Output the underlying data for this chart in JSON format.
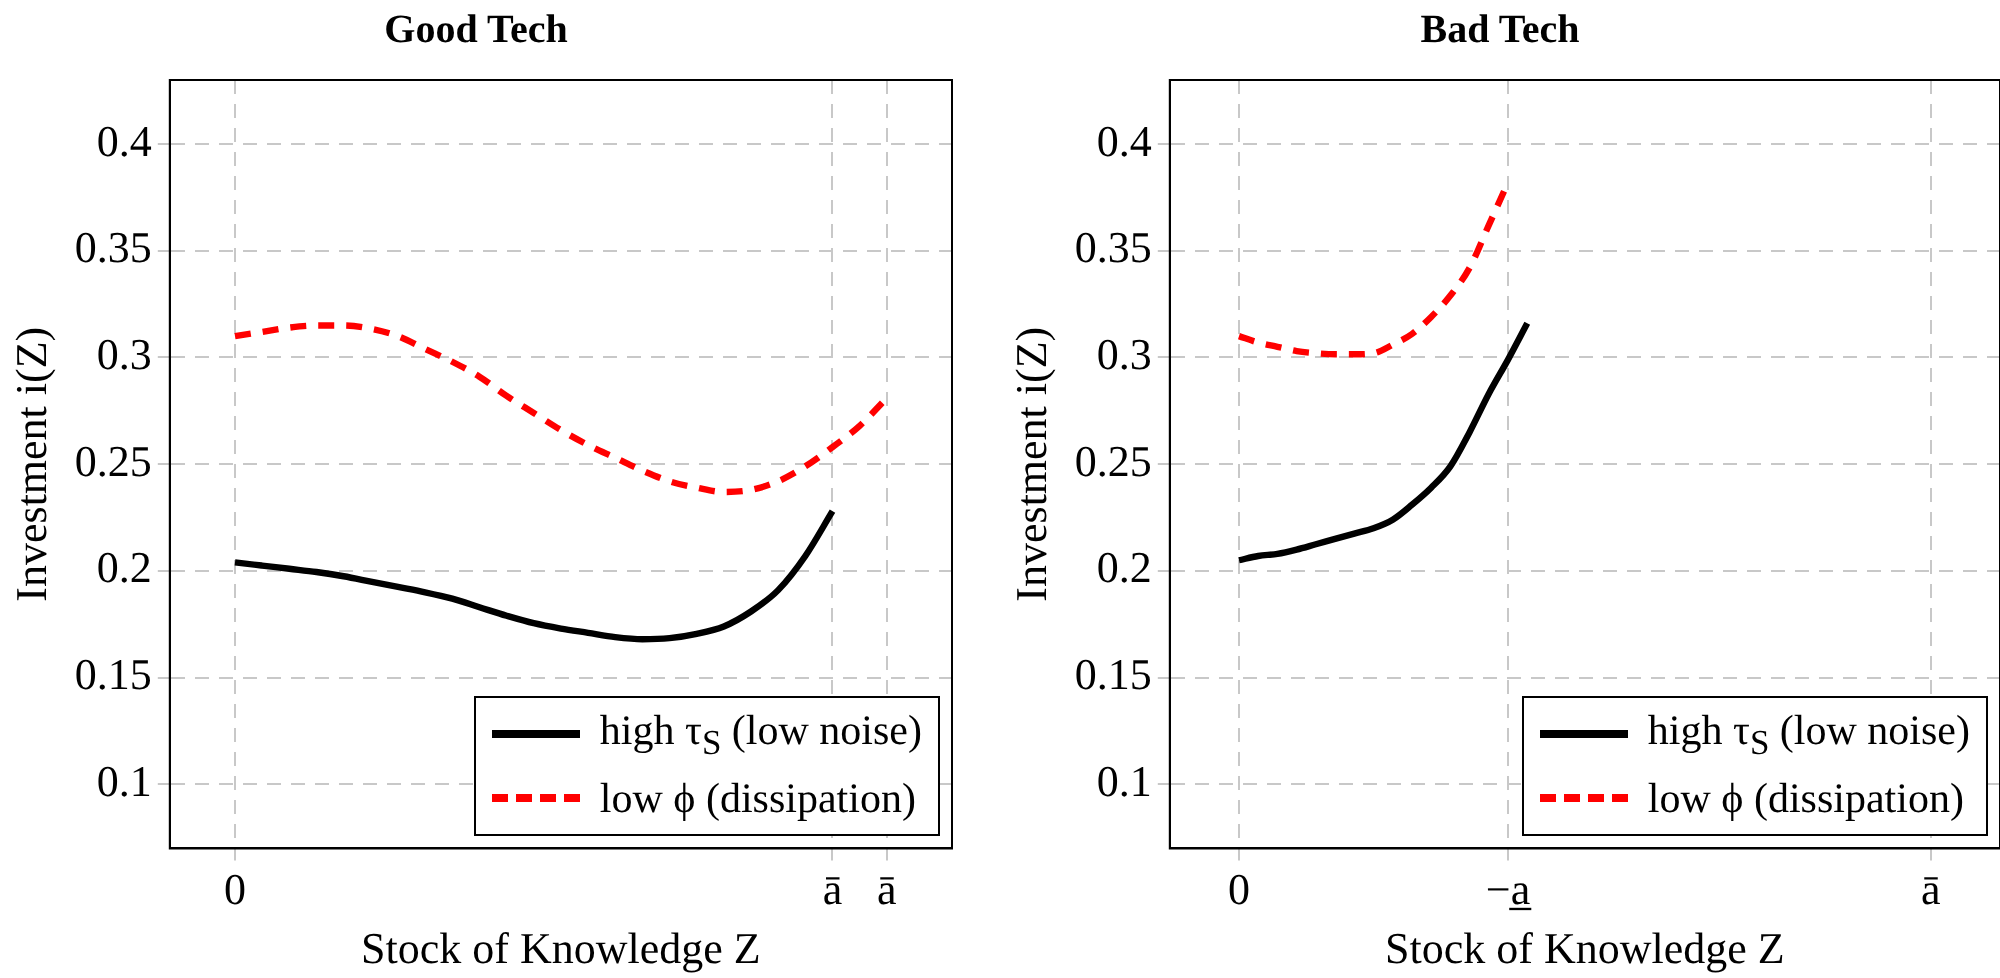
{
  "chart_data": [
    {
      "type": "line",
      "title": "Good Tech",
      "xlabel": "Stock of Knowledge Z",
      "ylabel": "Investment i(Z)",
      "categories": [
        "0",
        null,
        null,
        null,
        null,
        null,
        null,
        null,
        null,
        null,
        null,
        null,
        null,
        null,
        null,
        null,
        null,
        null,
        null,
        null,
        null,
        null,
        "ā",
        null,
        "ā"
      ],
      "ylim": [
        0.07,
        0.43
      ],
      "yticks": [
        0.1,
        0.15,
        0.2,
        0.25,
        0.3,
        0.35,
        0.4
      ],
      "grid": true,
      "legend": "bottom right",
      "series": [
        {
          "name": "high τ$_{S}$ (low noise)",
          "color": "#000000",
          "line_style": "solid",
          "values": [
            0.204,
            0.2025,
            0.201,
            0.1995,
            0.1975,
            0.195,
            0.1925,
            0.19,
            0.187,
            0.183,
            0.179,
            0.1755,
            0.173,
            0.171,
            0.169,
            0.168,
            0.1685,
            0.1705,
            0.174,
            0.181,
            0.191,
            0.207,
            0.228,
            null,
            null
          ]
        },
        {
          "name": "low ϕ (dissipation)",
          "color": "#ff0000",
          "line_style": "dashed",
          "values": [
            0.31,
            0.312,
            0.314,
            0.315,
            0.315,
            0.3135,
            0.31,
            0.304,
            0.298,
            0.291,
            0.282,
            0.274,
            0.266,
            0.259,
            0.253,
            0.247,
            0.242,
            0.239,
            0.237,
            0.238,
            0.242,
            0.249,
            0.258,
            0.268,
            0.281
          ]
        }
      ]
    },
    {
      "type": "line",
      "title": "Bad Tech",
      "xlabel": "Stock of Knowledge Z",
      "ylabel": "Investment i(Z)",
      "categories": [
        "0",
        null,
        null,
        null,
        null,
        null,
        null,
        null,
        null,
        null,
        null,
        null,
        null,
        null,
        "−a̲",
        null,
        null,
        null,
        null,
        null,
        null,
        null,
        null,
        null,
        null,
        null,
        null,
        null,
        null,
        null,
        null,
        null,
        null,
        null,
        null,
        null,
        "ā"
      ],
      "ylim": [
        0.07,
        0.43
      ],
      "yticks": [
        0.1,
        0.15,
        0.2,
        0.25,
        0.3,
        0.35,
        0.4
      ],
      "grid": true,
      "legend": "bottom right",
      "series": [
        {
          "name": "high τ$_{S}$ (low noise)",
          "color": "#000000",
          "line_style": "solid",
          "values": [
            0.205,
            0.207,
            0.208,
            0.21,
            0.2125,
            0.215,
            0.2175,
            0.22,
            0.224,
            0.231,
            0.239,
            0.249,
            0.265,
            0.283,
            0.299,
            0.316,
            null,
            null,
            null,
            null,
            null,
            null,
            null,
            null,
            null,
            null,
            null,
            null,
            null,
            null,
            null,
            null,
            null,
            null,
            null,
            null,
            null
          ]
        },
        {
          "name": "low ϕ (dissipation)",
          "color": "#ff0000",
          "line_style": "dashed",
          "values": [
            0.31,
            0.307,
            0.305,
            0.303,
            0.302,
            0.3015,
            0.3015,
            0.302,
            0.306,
            0.311,
            0.319,
            0.329,
            0.342,
            0.362,
            0.382,
            null,
            null,
            null,
            null,
            null,
            null,
            null,
            null,
            null,
            null,
            null,
            null,
            null,
            null,
            null,
            null,
            null,
            null,
            null,
            null,
            null,
            null
          ]
        }
      ]
    }
  ]
}
